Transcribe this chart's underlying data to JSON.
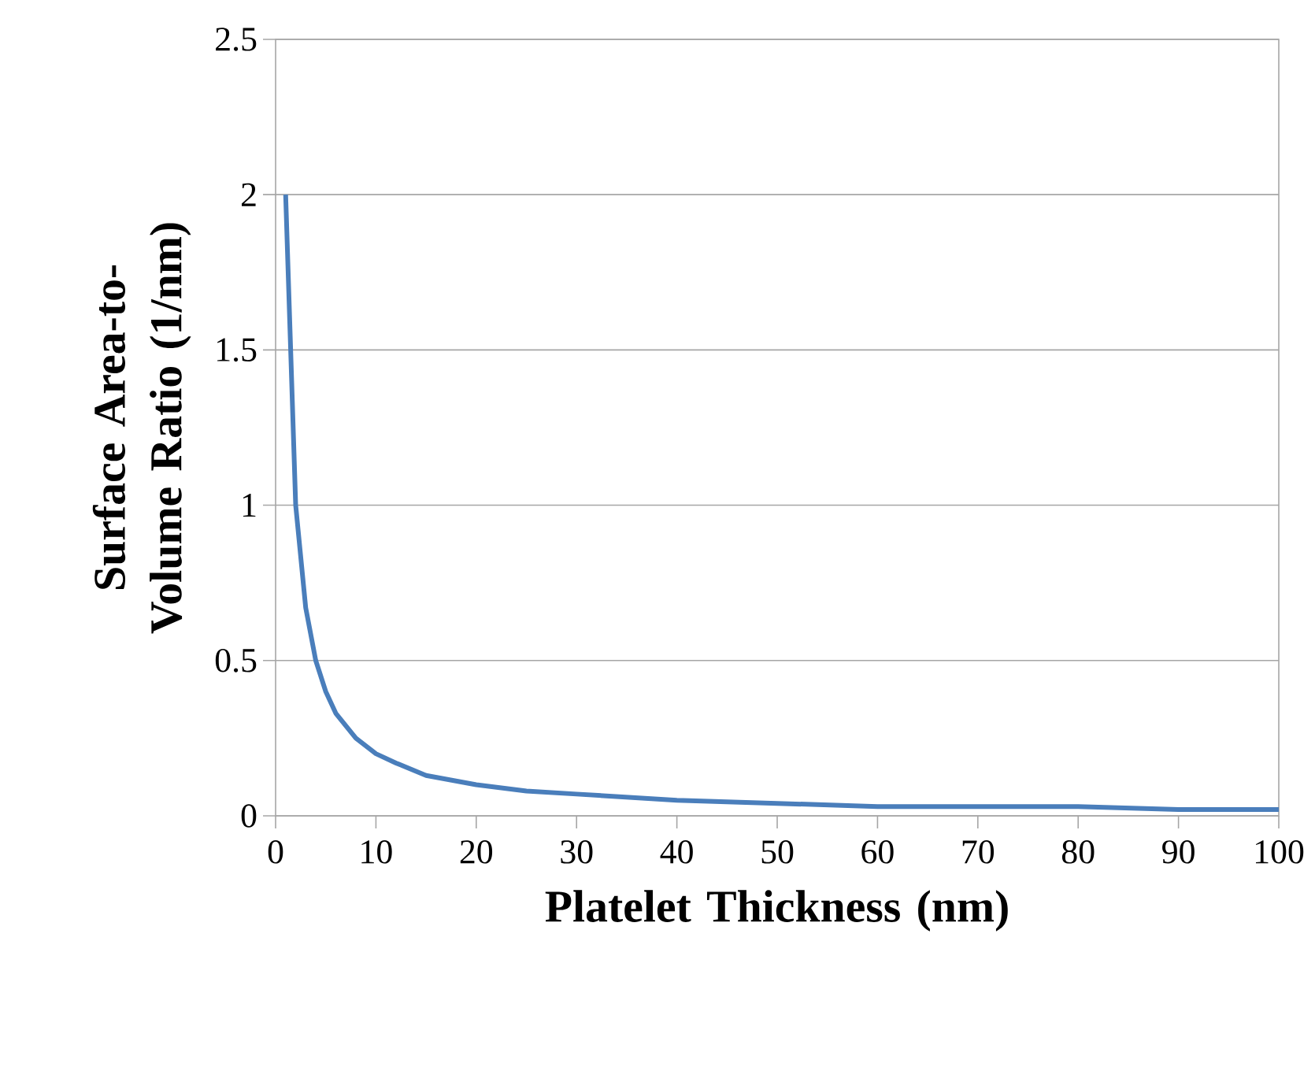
{
  "chart_data": {
    "type": "line",
    "xlabel": "Platelet Thickness (nm)",
    "ylabel": "Surface Area-to-Volume  Ratio (1/nm)",
    "x": [
      1,
      2,
      3,
      4,
      5,
      6,
      8,
      10,
      12,
      15,
      20,
      25,
      30,
      40,
      50,
      60,
      70,
      80,
      90,
      100
    ],
    "series": [
      {
        "color": "#4a7ebb",
        "values": [
          2,
          1,
          0.67,
          0.5,
          0.4,
          0.33,
          0.25,
          0.2,
          0.17,
          0.13,
          0.1,
          0.08,
          0.07,
          0.05,
          0.04,
          0.03,
          0.03,
          0.03,
          0.02,
          0.02
        ]
      }
    ],
    "xlim": [
      0,
      100
    ],
    "xticks": [
      0,
      10,
      20,
      30,
      40,
      50,
      60,
      70,
      80,
      90,
      100
    ],
    "ylim": [
      0,
      2.5
    ],
    "yticks": [
      0,
      0.5,
      1,
      1.5,
      2,
      2.5
    ],
    "grid": "y",
    "marker": "none",
    "line_style": "solid"
  }
}
